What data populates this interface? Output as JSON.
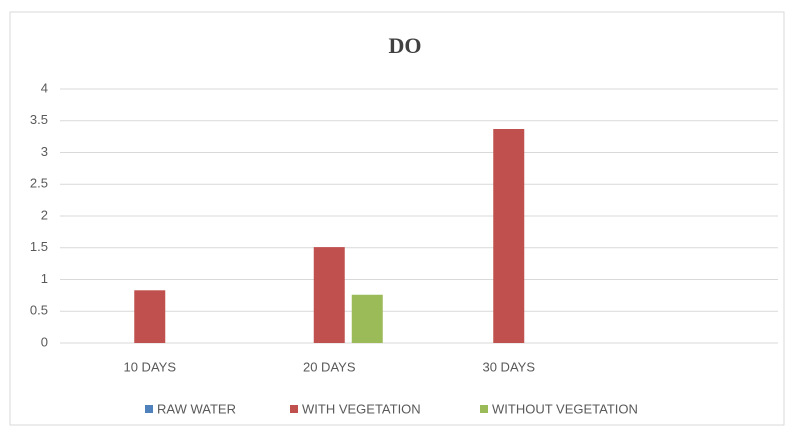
{
  "chart_data": {
    "type": "bar",
    "title": "DO",
    "categories": [
      "10 DAYS",
      "20 DAYS",
      "30 DAYS",
      null
    ],
    "series": [
      {
        "name": "RAW WATER",
        "color": "#4f81bd",
        "values": [
          0,
          0,
          0,
          null
        ]
      },
      {
        "name": "WITH VEGETATION",
        "color": "#c0504d",
        "values": [
          0.83,
          1.51,
          3.37,
          null
        ]
      },
      {
        "name": "WITHOUT VEGETATION",
        "color": "#9bbb59",
        "values": [
          0,
          0.76,
          0,
          null
        ]
      }
    ],
    "ylim": [
      0,
      4
    ],
    "yticks": [
      0,
      0.5,
      1,
      1.5,
      2,
      2.5,
      3,
      3.5,
      4
    ],
    "grid": true,
    "legend": "bottom"
  }
}
